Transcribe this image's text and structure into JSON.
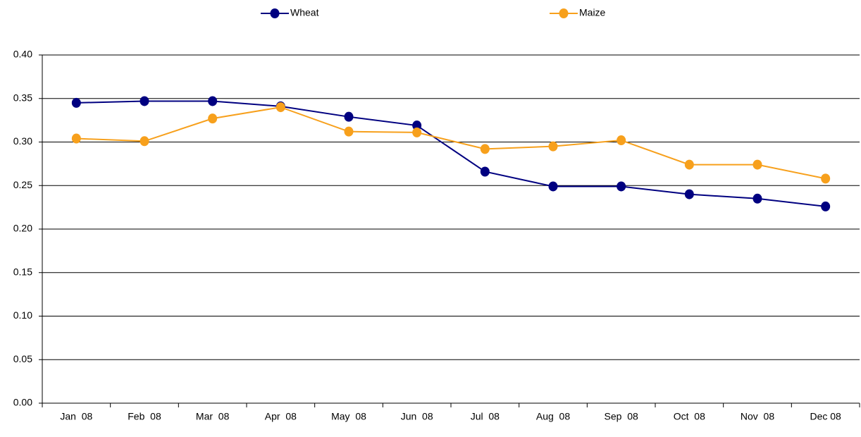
{
  "chart_data": {
    "type": "line",
    "categories": [
      "Jan  08",
      "Feb  08",
      "Mar  08",
      "Apr  08",
      "May  08",
      "Jun  08",
      "Jul  08",
      "Aug  08",
      "Sep  08",
      "Oct  08",
      "Nov  08",
      "Dec 08"
    ],
    "series": [
      {
        "name": "Wheat",
        "color": "#000080",
        "values": [
          0.345,
          0.347,
          0.347,
          0.341,
          0.329,
          0.319,
          0.266,
          0.249,
          0.249,
          0.24,
          0.235,
          0.226
        ]
      },
      {
        "name": "Maize",
        "color": "#f7a01c",
        "values": [
          0.304,
          0.301,
          0.327,
          0.34,
          0.312,
          0.311,
          0.292,
          0.295,
          0.302,
          0.274,
          0.274,
          0.258
        ]
      }
    ],
    "ylim": [
      0,
      0.4
    ],
    "yticks": [
      {
        "value": 0,
        "label": "0.00"
      },
      {
        "value": 0.05,
        "label": "0.05"
      },
      {
        "value": 0.1,
        "label": "0.10"
      },
      {
        "value": 0.15,
        "label": "0.15"
      },
      {
        "value": 0.2,
        "label": "0.20"
      },
      {
        "value": 0.25,
        "label": "0.25"
      },
      {
        "value": 0.3,
        "label": "0.30"
      },
      {
        "value": 0.35,
        "label": "0.35"
      },
      {
        "value": 0.4,
        "label": "0.40"
      }
    ],
    "grid": true,
    "legend": "top"
  }
}
